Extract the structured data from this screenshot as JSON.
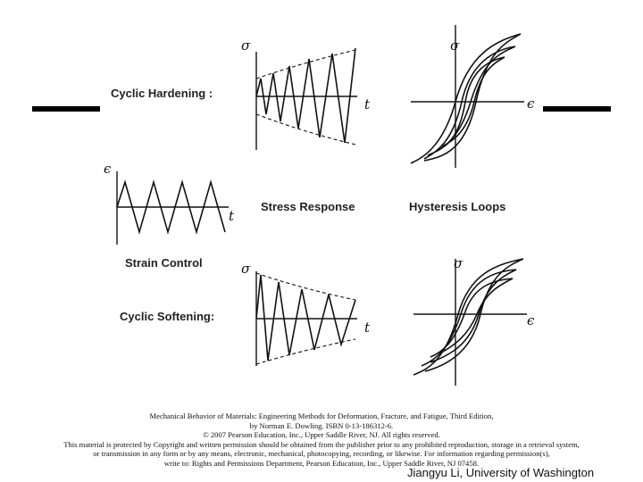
{
  "labels": {
    "cyclic_hardening": "Cyclic Hardening :",
    "stress_response": "Stress Response",
    "hysteresis_loops": "Hysteresis  Loops",
    "strain_control": "Strain Control",
    "cyclic_softening": "Cyclic Softening:"
  },
  "symbols": {
    "sigma": "σ",
    "epsilon": "ϵ",
    "t": "t"
  },
  "caption": [
    "Mechanical Behavior of Materials: Engineering Methods for Deformation, Fracture, and Fatigue, Third Edition,",
    "by Norman E. Dowling. ISBN 0-13-186312-6.",
    "© 2007 Pearson Education, Inc., Upper Saddle River, NJ. All rights reserved.",
    "This material is protected by Copyright and written permission should be obtained from the publisher prior to any prohibited reproduction, storage in a retrieval system,",
    "or transmission in any form or by any means, electronic, mechanical, photocopying, recording, or likewise. For information regarding permission(s),",
    "write to: Rights and Permissions Department, Pearson Education, Inc., Upper Saddle River, NJ 07458."
  ],
  "footer": "Jiangyu Li, University of Washington",
  "colors": {
    "ink": "#111111",
    "background": "#ffffff",
    "bars": "#000000"
  }
}
